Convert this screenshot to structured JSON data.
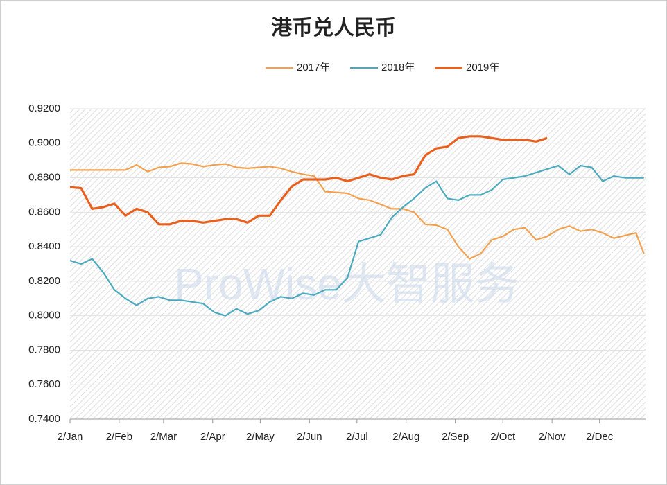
{
  "chart_data": {
    "type": "line",
    "title": "港币兑人民币",
    "watermark": "ProWise大智服务",
    "xlim": [
      0,
      363
    ],
    "xticks": [
      {
        "value": 0,
        "label": "2/Jan"
      },
      {
        "value": 31,
        "label": "2/Feb"
      },
      {
        "value": 59,
        "label": "2/Mar"
      },
      {
        "value": 90,
        "label": "2/Apr"
      },
      {
        "value": 120,
        "label": "2/May"
      },
      {
        "value": 151,
        "label": "2/Jun"
      },
      {
        "value": 181,
        "label": "2/Jul"
      },
      {
        "value": 212,
        "label": "2/Aug"
      },
      {
        "value": 243,
        "label": "2/Sep"
      },
      {
        "value": 273,
        "label": "2/Oct"
      },
      {
        "value": 304,
        "label": "2/Nov"
      },
      {
        "value": 334,
        "label": "2/Dec"
      }
    ],
    "ylim": [
      0.74,
      0.92
    ],
    "yticks": [
      {
        "value": 0.74,
        "label": "0.7400"
      },
      {
        "value": 0.76,
        "label": "0.7600"
      },
      {
        "value": 0.78,
        "label": "0.7800"
      },
      {
        "value": 0.8,
        "label": "0.8000"
      },
      {
        "value": 0.82,
        "label": "0.8200"
      },
      {
        "value": 0.84,
        "label": "0.8400"
      },
      {
        "value": 0.86,
        "label": "0.8600"
      },
      {
        "value": 0.88,
        "label": "0.8800"
      },
      {
        "value": 0.9,
        "label": "0.9000"
      },
      {
        "value": 0.92,
        "label": "0.9200"
      }
    ],
    "grid": true,
    "series": [
      {
        "name": "2017年",
        "color": "#f2a04e",
        "x": [
          0,
          7,
          14,
          21,
          28,
          35,
          42,
          49,
          56,
          63,
          70,
          77,
          84,
          91,
          98,
          105,
          112,
          119,
          126,
          133,
          140,
          147,
          154,
          161,
          168,
          175,
          182,
          189,
          196,
          203,
          210,
          217,
          224,
          231,
          238,
          245,
          252,
          259,
          266,
          273,
          280,
          287,
          294,
          301,
          308,
          315,
          322,
          329,
          336,
          343,
          350,
          357,
          362
        ],
        "values": [
          0.8845,
          0.8845,
          0.8845,
          0.8845,
          0.8845,
          0.8845,
          0.8875,
          0.8835,
          0.886,
          0.8865,
          0.8885,
          0.888,
          0.8865,
          0.8875,
          0.888,
          0.886,
          0.8855,
          0.886,
          0.8865,
          0.8855,
          0.8835,
          0.882,
          0.881,
          0.872,
          0.8715,
          0.871,
          0.868,
          0.867,
          0.8645,
          0.862,
          0.862,
          0.86,
          0.853,
          0.8525,
          0.85,
          0.84,
          0.833,
          0.836,
          0.844,
          0.846,
          0.85,
          0.851,
          0.844,
          0.846,
          0.85,
          0.852,
          0.849,
          0.85,
          0.848,
          0.845,
          0.8465,
          0.848,
          0.836
        ]
      },
      {
        "name": "2018年",
        "color": "#4aaac0",
        "x": [
          0,
          7,
          14,
          21,
          28,
          35,
          42,
          49,
          56,
          63,
          70,
          77,
          84,
          91,
          98,
          105,
          112,
          119,
          126,
          133,
          140,
          147,
          154,
          161,
          168,
          175,
          182,
          189,
          196,
          203,
          210,
          217,
          224,
          231,
          238,
          245,
          252,
          259,
          266,
          273,
          280,
          287,
          294,
          301,
          308,
          315,
          322,
          329,
          336,
          343,
          350,
          357,
          362
        ],
        "values": [
          0.832,
          0.83,
          0.833,
          0.825,
          0.815,
          0.81,
          0.806,
          0.81,
          0.811,
          0.809,
          0.809,
          0.808,
          0.807,
          0.802,
          0.8,
          0.804,
          0.801,
          0.803,
          0.808,
          0.811,
          0.81,
          0.813,
          0.812,
          0.815,
          0.815,
          0.822,
          0.843,
          0.845,
          0.847,
          0.857,
          0.863,
          0.868,
          0.874,
          0.878,
          0.868,
          0.867,
          0.87,
          0.87,
          0.873,
          0.879,
          0.88,
          0.881,
          0.883,
          0.885,
          0.887,
          0.882,
          0.887,
          0.886,
          0.878,
          0.881,
          0.88,
          0.88,
          0.88
        ]
      },
      {
        "name": "2019年",
        "color": "#e9601e",
        "x": [
          0,
          7,
          14,
          21,
          28,
          35,
          42,
          49,
          56,
          63,
          70,
          77,
          84,
          91,
          98,
          105,
          112,
          119,
          126,
          133,
          140,
          147,
          154,
          161,
          168,
          175,
          182,
          189,
          196,
          203,
          210,
          217,
          224,
          231,
          238,
          245,
          252,
          259,
          266,
          273,
          280,
          287,
          294,
          301
        ],
        "values": [
          0.8745,
          0.874,
          0.862,
          0.863,
          0.865,
          0.858,
          0.862,
          0.86,
          0.853,
          0.853,
          0.855,
          0.855,
          0.854,
          0.855,
          0.856,
          0.856,
          0.854,
          0.858,
          0.858,
          0.867,
          0.875,
          0.879,
          0.879,
          0.879,
          0.88,
          0.878,
          0.88,
          0.882,
          0.88,
          0.879,
          0.881,
          0.882,
          0.893,
          0.897,
          0.898,
          0.903,
          0.904,
          0.904,
          0.903,
          0.902,
          0.902,
          0.902,
          0.901,
          0.903
        ]
      }
    ]
  }
}
